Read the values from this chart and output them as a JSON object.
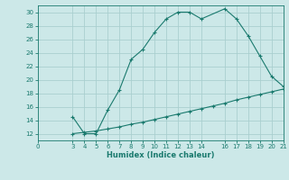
{
  "upper_x": [
    3,
    4,
    5,
    6,
    7,
    8,
    9,
    10,
    11,
    12,
    13,
    14,
    16,
    17,
    18,
    19,
    20,
    21
  ],
  "upper_y": [
    14.5,
    12.0,
    12.0,
    15.5,
    18.5,
    23.0,
    24.5,
    27.0,
    29.0,
    30.0,
    30.0,
    29.0,
    30.5,
    29.0,
    26.5,
    23.5,
    20.5,
    19.0
  ],
  "lower_x": [
    3,
    4,
    5,
    6,
    7,
    8,
    9,
    10,
    11,
    12,
    13,
    14,
    15,
    16,
    17,
    18,
    19,
    20,
    21
  ],
  "lower_y": [
    12.0,
    12.2,
    12.4,
    12.7,
    13.0,
    13.4,
    13.7,
    14.1,
    14.5,
    14.9,
    15.3,
    15.7,
    16.1,
    16.5,
    17.0,
    17.4,
    17.8,
    18.2,
    18.6
  ],
  "line_color": "#1a7a6e",
  "bg_color": "#cce8e8",
  "grid_color": "#aacfcf",
  "xlabel": "Humidex (Indice chaleur)",
  "xlim": [
    0,
    21
  ],
  "ylim": [
    11,
    31
  ],
  "yticks": [
    12,
    14,
    16,
    18,
    20,
    22,
    24,
    26,
    28,
    30
  ],
  "xticks": [
    0,
    3,
    4,
    5,
    6,
    7,
    8,
    9,
    10,
    11,
    12,
    13,
    14,
    16,
    17,
    18,
    19,
    20,
    21
  ],
  "marker": "+"
}
